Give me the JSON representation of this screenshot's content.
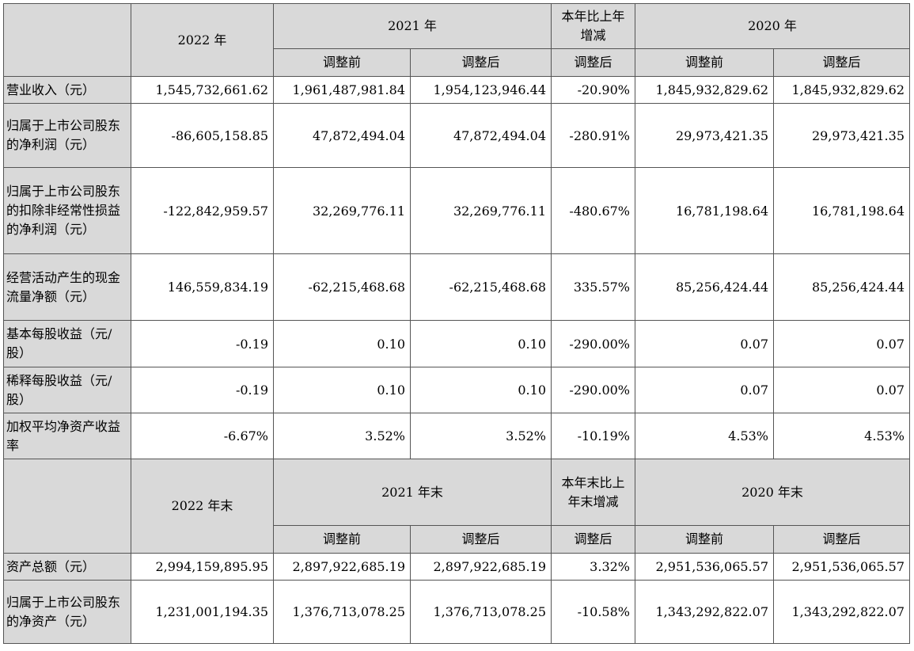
{
  "income_table": {
    "headers": {
      "y2022": "2022 年",
      "y2021": "2021 年",
      "change": "本年比上年增减",
      "y2020": "2020 年",
      "before": "调整前",
      "after": "调整后"
    },
    "rows": [
      {
        "label": "营业收入（元）",
        "values": [
          "1,545,732,661.62",
          "1,961,487,981.84",
          "1,954,123,946.44",
          "-20.90%",
          "1,845,932,829.62",
          "1,845,932,829.62"
        ]
      },
      {
        "label": "归属于上市公司股东的净利润（元）",
        "values": [
          "-86,605,158.85",
          "47,872,494.04",
          "47,872,494.04",
          "-280.91%",
          "29,973,421.35",
          "29,973,421.35"
        ]
      },
      {
        "label": "归属于上市公司股东的扣除非经常性损益的净利润（元）",
        "values": [
          "-122,842,959.57",
          "32,269,776.11",
          "32,269,776.11",
          "-480.67%",
          "16,781,198.64",
          "16,781,198.64"
        ]
      },
      {
        "label": "经营活动产生的现金流量净额（元）",
        "values": [
          "146,559,834.19",
          "-62,215,468.68",
          "-62,215,468.68",
          "335.57%",
          "85,256,424.44",
          "85,256,424.44"
        ]
      },
      {
        "label": "基本每股收益（元/股）",
        "values": [
          "-0.19",
          "0.10",
          "0.10",
          "-290.00%",
          "0.07",
          "0.07"
        ]
      },
      {
        "label": "稀释每股收益（元/股）",
        "values": [
          "-0.19",
          "0.10",
          "0.10",
          "-290.00%",
          "0.07",
          "0.07"
        ]
      },
      {
        "label": "加权平均净资产收益率",
        "values": [
          "-6.67%",
          "3.52%",
          "3.52%",
          "-10.19%",
          "4.53%",
          "4.53%"
        ]
      }
    ]
  },
  "balance_table": {
    "headers": {
      "y2022": "2022 年末",
      "y2021": "2021 年末",
      "change": "本年末比上年末增减",
      "y2020": "2020 年末",
      "before": "调整前",
      "after": "调整后"
    },
    "rows": [
      {
        "label": "资产总额（元）",
        "values": [
          "2,994,159,895.95",
          "2,897,922,685.19",
          "2,897,922,685.19",
          "3.32%",
          "2,951,536,065.57",
          "2,951,536,065.57"
        ]
      },
      {
        "label": "归属于上市公司股东的净资产（元）",
        "values": [
          "1,231,001,194.35",
          "1,376,713,078.25",
          "1,376,713,078.25",
          "-10.58%",
          "1,343,292,822.07",
          "1,343,292,822.07"
        ]
      }
    ]
  }
}
